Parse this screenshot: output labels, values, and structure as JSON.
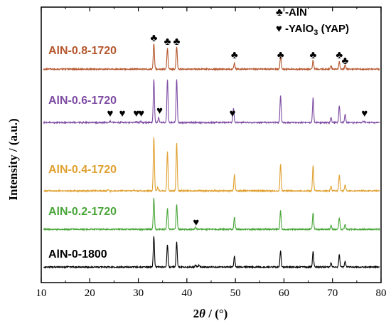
{
  "chart_data": {
    "type": "line",
    "xlabel_prefix": "2",
    "xlabel_symbol": "θ",
    "xlabel_suffix": " / (°)",
    "ylabel": "Intensity / (a.u.)",
    "xlim": [
      10,
      80
    ],
    "x_ticks": [
      "10",
      "20",
      "30",
      "40",
      "50",
      "60",
      "70",
      "80"
    ],
    "legend": [
      {
        "symbol": "♣",
        "text": "-AlN"
      },
      {
        "symbol": "♥",
        "text": "-YAlO",
        "sub": "3",
        "text_after": " (YAP)"
      }
    ],
    "series": [
      {
        "name": "AlN-0.8-1720",
        "color": "#b5562d",
        "offset": 4,
        "peaks": [
          {
            "x": 33.2,
            "h": 0.62
          },
          {
            "x": 36.0,
            "h": 0.5
          },
          {
            "x": 37.9,
            "h": 0.55
          },
          {
            "x": 49.8,
            "h": 0.15
          },
          {
            "x": 59.3,
            "h": 0.3
          },
          {
            "x": 66.0,
            "h": 0.22
          },
          {
            "x": 69.7,
            "h": 0.08
          },
          {
            "x": 71.4,
            "h": 0.18
          },
          {
            "x": 72.6,
            "h": 0.1
          }
        ]
      },
      {
        "name": "AlN-0.6-1720",
        "color": "#7e4ca3",
        "offset": 3,
        "peaks": [
          {
            "x": 24.2,
            "h": 0.03
          },
          {
            "x": 26.5,
            "h": 0.02
          },
          {
            "x": 29.6,
            "h": 0.02
          },
          {
            "x": 30.5,
            "h": 0.03
          },
          {
            "x": 33.2,
            "h": 1.05
          },
          {
            "x": 34.2,
            "h": 0.12
          },
          {
            "x": 36.0,
            "h": 1.05
          },
          {
            "x": 37.9,
            "h": 1.05
          },
          {
            "x": 49.6,
            "h": 0.35
          },
          {
            "x": 59.3,
            "h": 0.65
          },
          {
            "x": 66.0,
            "h": 0.6
          },
          {
            "x": 69.7,
            "h": 0.12
          },
          {
            "x": 71.4,
            "h": 0.4
          },
          {
            "x": 72.6,
            "h": 0.2
          },
          {
            "x": 76.4,
            "h": 0.03
          }
        ]
      },
      {
        "name": "AlN-0.4-1720",
        "color": "#e0a030",
        "offset": 2,
        "peaks": [
          {
            "x": 23.8,
            "h": 0.03
          },
          {
            "x": 29.0,
            "h": 0.02
          },
          {
            "x": 33.2,
            "h": 1.3
          },
          {
            "x": 34.0,
            "h": 0.08
          },
          {
            "x": 36.0,
            "h": 0.95
          },
          {
            "x": 37.9,
            "h": 1.15
          },
          {
            "x": 49.8,
            "h": 0.4
          },
          {
            "x": 59.3,
            "h": 0.65
          },
          {
            "x": 66.0,
            "h": 0.62
          },
          {
            "x": 69.7,
            "h": 0.12
          },
          {
            "x": 71.4,
            "h": 0.38
          },
          {
            "x": 72.6,
            "h": 0.15
          }
        ]
      },
      {
        "name": "AlN-0.2-1720",
        "color": "#4aa63a",
        "offset": 1,
        "peaks": [
          {
            "x": 33.2,
            "h": 0.75
          },
          {
            "x": 36.0,
            "h": 0.5
          },
          {
            "x": 37.9,
            "h": 0.6
          },
          {
            "x": 41.8,
            "h": 0.05
          },
          {
            "x": 49.8,
            "h": 0.3
          },
          {
            "x": 59.3,
            "h": 0.45
          },
          {
            "x": 66.0,
            "h": 0.4
          },
          {
            "x": 69.7,
            "h": 0.1
          },
          {
            "x": 71.4,
            "h": 0.28
          },
          {
            "x": 72.6,
            "h": 0.12
          }
        ]
      },
      {
        "name": "AlN-0-1800",
        "color": "#000000",
        "offset": 0,
        "peaks": [
          {
            "x": 33.2,
            "h": 0.75
          },
          {
            "x": 36.0,
            "h": 0.55
          },
          {
            "x": 37.9,
            "h": 0.6
          },
          {
            "x": 41.8,
            "h": 0.05
          },
          {
            "x": 42.5,
            "h": 0.04
          },
          {
            "x": 49.8,
            "h": 0.28
          },
          {
            "x": 59.3,
            "h": 0.4
          },
          {
            "x": 66.0,
            "h": 0.38
          },
          {
            "x": 69.7,
            "h": 0.1
          },
          {
            "x": 71.4,
            "h": 0.3
          },
          {
            "x": 72.6,
            "h": 0.14
          }
        ]
      }
    ],
    "annotations": [
      {
        "symbol": "♣",
        "x": 33.2,
        "series": 0
      },
      {
        "symbol": "♣",
        "x": 36.0,
        "series": 0
      },
      {
        "symbol": "♣",
        "x": 37.9,
        "series": 0
      },
      {
        "symbol": "♣",
        "x": 49.8,
        "series": 0
      },
      {
        "symbol": "♣",
        "x": 59.3,
        "series": 0
      },
      {
        "symbol": "♣",
        "x": 66.0,
        "series": 0
      },
      {
        "symbol": "♣",
        "x": 71.4,
        "series": 0
      },
      {
        "symbol": "♣",
        "x": 72.6,
        "series": 0
      },
      {
        "symbol": "♥",
        "x": 24.2,
        "series": 1
      },
      {
        "symbol": "♥",
        "x": 26.7,
        "series": 1
      },
      {
        "symbol": "♥",
        "x": 29.6,
        "series": 1
      },
      {
        "symbol": "♥",
        "x": 30.6,
        "series": 1
      },
      {
        "symbol": "♥",
        "x": 34.4,
        "series": 1
      },
      {
        "symbol": "♥",
        "x": 49.4,
        "series": 1
      },
      {
        "symbol": "♥",
        "x": 76.6,
        "series": 1
      },
      {
        "symbol": "♥",
        "x": 41.9,
        "series": 3
      }
    ]
  }
}
